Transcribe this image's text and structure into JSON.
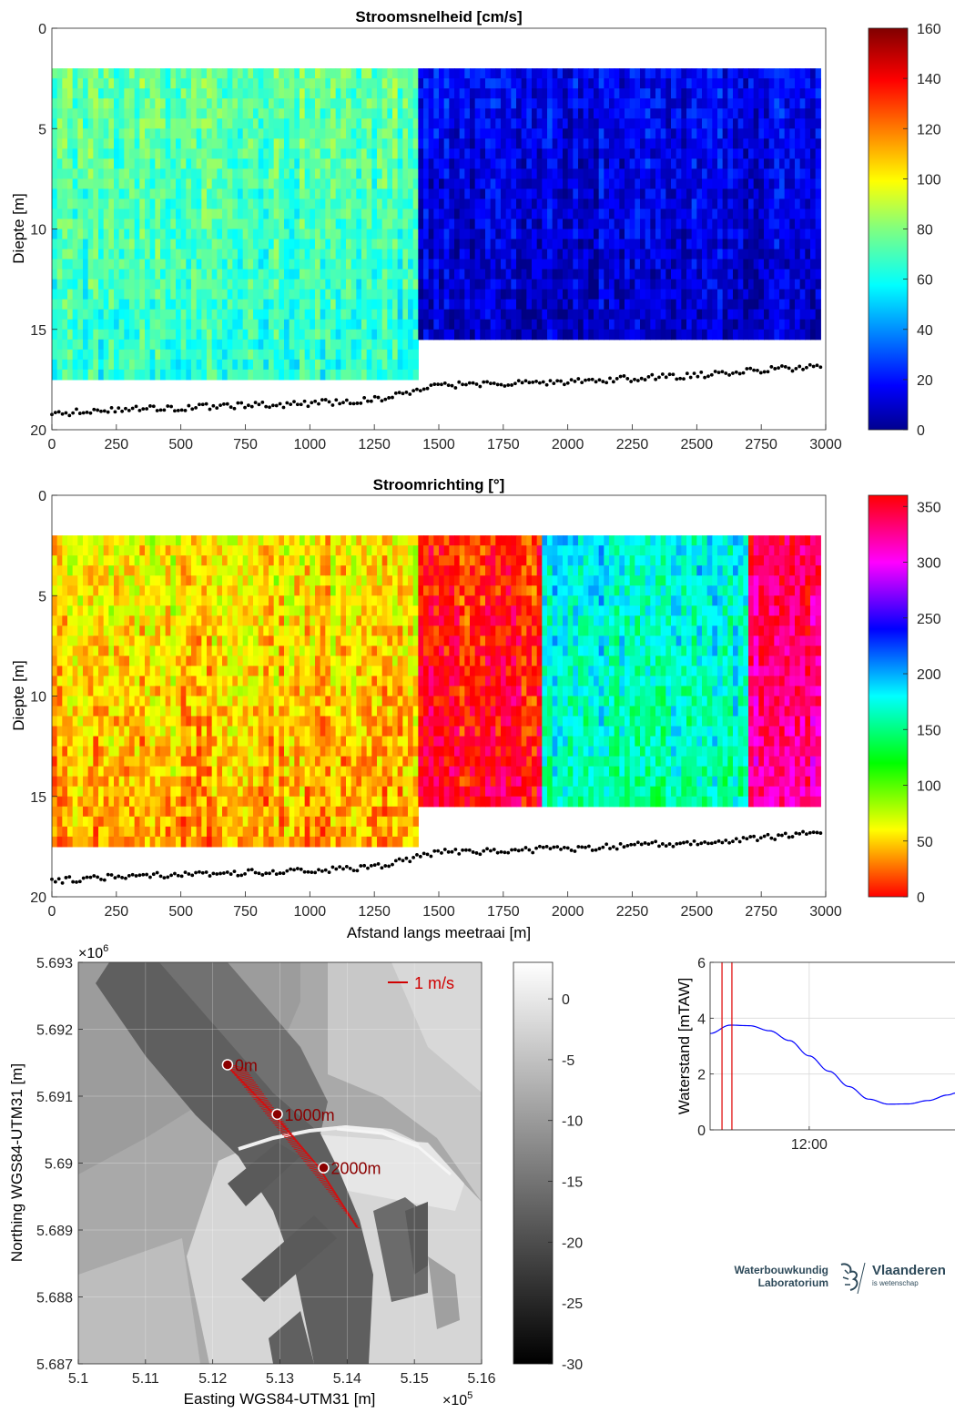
{
  "chart_data": [
    {
      "type": "heatmap",
      "title": "Stroomsnelheid [cm/s]",
      "xlabel": "",
      "ylabel": "Diepte [m]",
      "xlim": [
        0,
        3000
      ],
      "ylim": [
        20,
        0
      ],
      "x_ticks": [
        "0",
        "250",
        "500",
        "750",
        "1000",
        "1250",
        "1500",
        "1750",
        "2000",
        "2250",
        "2500",
        "2750",
        "3000"
      ],
      "y_ticks": [
        "0",
        "5",
        "10",
        "15",
        "20"
      ],
      "colorbar": {
        "range": [
          0,
          160
        ],
        "ticks": [
          "0",
          "20",
          "40",
          "60",
          "80",
          "100",
          "120",
          "140",
          "160"
        ],
        "colormap": "jet"
      },
      "regions": [
        {
          "x_range": [
            0,
            1420
          ],
          "depth_range": [
            2,
            17.5
          ],
          "mean_value": 75
        },
        {
          "x_range": [
            1420,
            2980
          ],
          "depth_range": [
            2,
            15.5
          ],
          "mean_value": 20
        }
      ],
      "bottom_profile": {
        "x": [
          0,
          250,
          500,
          750,
          1000,
          1250,
          1420,
          1500,
          2000,
          2500,
          3000
        ],
        "depth": [
          19.2,
          19.0,
          18.9,
          18.8,
          18.7,
          18.5,
          18.0,
          17.8,
          17.6,
          17.3,
          16.8
        ]
      }
    },
    {
      "type": "heatmap",
      "title": "Stroomrichting [°]",
      "xlabel": "Afstand langs meetraai [m]",
      "ylabel": "Diepte [m]",
      "xlim": [
        0,
        3000
      ],
      "ylim": [
        20,
        0
      ],
      "x_ticks": [
        "0",
        "250",
        "500",
        "750",
        "1000",
        "1250",
        "1500",
        "1750",
        "2000",
        "2250",
        "2500",
        "2750",
        "3000"
      ],
      "y_ticks": [
        "0",
        "5",
        "10",
        "15",
        "20"
      ],
      "colorbar": {
        "range": [
          0,
          360
        ],
        "ticks": [
          "0",
          "50",
          "100",
          "150",
          "200",
          "250",
          "300",
          "350"
        ],
        "colormap": "hsv"
      },
      "regions": [
        {
          "x_range": [
            0,
            1420
          ],
          "depth_range": [
            2,
            17.5
          ],
          "mean_value": 60
        },
        {
          "x_range": [
            1420,
            1900
          ],
          "depth_range": [
            2,
            15.5
          ],
          "mean_value": 10
        },
        {
          "x_range": [
            1900,
            2700
          ],
          "depth_range": [
            2,
            15.5
          ],
          "mean_value": 180
        },
        {
          "x_range": [
            2700,
            2980
          ],
          "depth_range": [
            2,
            15.5
          ],
          "mean_value": 340
        }
      ],
      "bottom_profile": {
        "x": [
          0,
          250,
          500,
          750,
          1000,
          1250,
          1420,
          1500,
          2000,
          2500,
          3000
        ],
        "depth": [
          19.2,
          19.0,
          18.9,
          18.8,
          18.7,
          18.5,
          18.0,
          17.8,
          17.6,
          17.3,
          16.8
        ]
      }
    },
    {
      "type": "heatmap",
      "title": "",
      "xlabel": "Easting WGS84-UTM31 [m]",
      "ylabel": "Northing WGS84-UTM31 [m]",
      "x_exponent": "×10",
      "x_exponent_power": "5",
      "y_exponent": "×10",
      "y_exponent_power": "6",
      "xlim": [
        5.1,
        5.16
      ],
      "ylim": [
        5.687,
        5.693
      ],
      "x_ticks": [
        "5.1",
        "5.11",
        "5.12",
        "5.13",
        "5.14",
        "5.15",
        "5.16"
      ],
      "y_ticks": [
        "5.687",
        "5.688",
        "5.689",
        "5.69",
        "5.691",
        "5.692",
        "5.693"
      ],
      "colorbar": {
        "range": [
          -30,
          3
        ],
        "ticks": [
          "-30",
          "-25",
          "-20",
          "-15",
          "-10",
          "-5",
          "0"
        ],
        "colormap": "gray"
      },
      "scale_label": "1 m/s",
      "markers": [
        {
          "label": "0m",
          "x": 5.1222,
          "y": 5.69147
        },
        {
          "label": "1000m",
          "x": 5.1296,
          "y": 5.69073
        },
        {
          "label": "2000m",
          "x": 5.1365,
          "y": 5.68993
        }
      ]
    },
    {
      "type": "line",
      "title": "",
      "xlabel": "",
      "ylabel": "Waterstand [mTAW]",
      "ylim": [
        0,
        6
      ],
      "y_ticks": [
        "0",
        "2",
        "4",
        "6"
      ],
      "x_ticks": [
        "12:00"
      ],
      "xlim_hours": [
        9.5,
        15.7
      ],
      "series": [
        {
          "x": [
            9.5,
            10.0,
            10.5,
            11.0,
            11.5,
            12.0,
            12.5,
            13.0,
            13.5,
            14.0,
            14.5,
            15.0,
            15.5,
            15.7
          ],
          "values": [
            3.45,
            3.75,
            3.73,
            3.55,
            3.2,
            2.65,
            2.1,
            1.55,
            1.1,
            0.92,
            0.93,
            1.05,
            1.25,
            1.32
          ]
        }
      ],
      "markers_x": [
        9.8,
        10.05
      ]
    }
  ],
  "logo": {
    "left_line1": "Waterbouwkundig",
    "left_line2": "Laboratorium",
    "right_line1": "Vlaanderen",
    "right_line2": "is wetenschap"
  }
}
